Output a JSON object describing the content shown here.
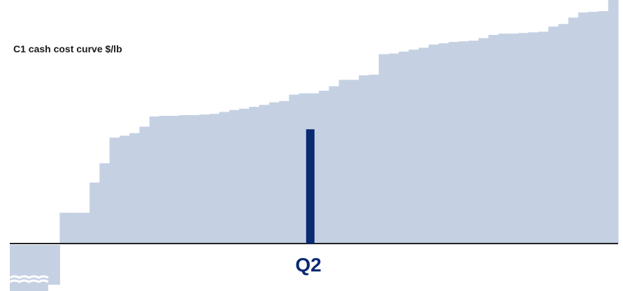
{
  "chart_data": {
    "type": "bar",
    "title": "C1 cash cost curve $/lb",
    "xlabel": "",
    "ylabel": "",
    "highlight": {
      "label": "Q2",
      "position": 0.494,
      "value": 1.78
    },
    "y_axis_break_below": true,
    "series": [
      {
        "values": [
          -0.62,
          -0.62,
          -0.62,
          -0.62,
          -0.62,
          0.48,
          0.48,
          0.48,
          0.95,
          1.25,
          1.65,
          1.68,
          1.72,
          1.82,
          1.98,
          1.99,
          1.99,
          2.0,
          2.0,
          2.01,
          2.02,
          2.05,
          2.08,
          2.1,
          2.13,
          2.16,
          2.2,
          2.22,
          2.32,
          2.34,
          2.34,
          2.38,
          2.45,
          2.55,
          2.55,
          2.62,
          2.63,
          2.95,
          2.96,
          2.99,
          3.02,
          3.05,
          3.1,
          3.12,
          3.14,
          3.15,
          3.16,
          3.2,
          3.25,
          3.27,
          3.27,
          3.28,
          3.29,
          3.3,
          3.38,
          3.42,
          3.52,
          3.6,
          3.61,
          3.62,
          3.8
        ]
      }
    ],
    "colors": {
      "bars": "#c5d1e3",
      "highlight": "#0a2a72",
      "axis": "#222222"
    }
  }
}
